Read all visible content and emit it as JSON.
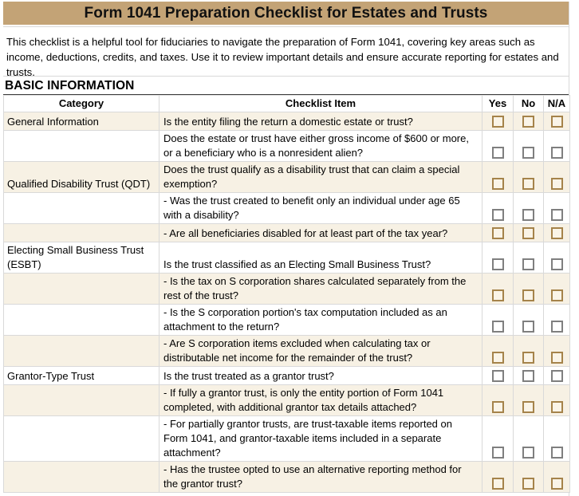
{
  "title": "Form 1041 Preparation Checklist for Estates and Trusts",
  "description": "This checklist is a helpful tool for fiduciaries to navigate the preparation of Form 1041, covering key areas such as income, deductions, credits, and taxes. Use it to review important details and ensure accurate reporting for estates and trusts.",
  "section": "BASIC INFORMATION",
  "columns": [
    "Category",
    "Checklist Item",
    "Yes",
    "No",
    "N/A"
  ],
  "colors": {
    "title_bar": "#c3a376",
    "row_cream": "#f7f1e4",
    "checkbox_brown_border": "#a5834a",
    "checkbox_gray_border": "#7f7f7f",
    "gridline": "#d9d9d9",
    "section_underline": "#3f3f3f"
  },
  "checkboxes": {
    "state": "all-unchecked"
  },
  "rows": [
    {
      "category": "General Information",
      "item": "Is the entity filing the return a domestic estate or trust?",
      "shade": "cream",
      "lines": "single"
    },
    {
      "category": "",
      "item": "Does the estate or trust have either gross income of $600 or more, or a beneficiary who is a nonresident alien?",
      "shade": "white",
      "lines": "double"
    },
    {
      "category": "Qualified Disability Trust (QDT)",
      "item": "Does the trust qualify as a disability trust that can claim a special exemption?",
      "shade": "cream",
      "lines": "double"
    },
    {
      "category": "",
      "item": "- Was the trust created to benefit only an individual under age 65 with a disability?",
      "shade": "white",
      "lines": "double"
    },
    {
      "category": "",
      "item": "- Are all beneficiaries disabled for at least part of the tax year?",
      "shade": "cream",
      "lines": "single"
    },
    {
      "category": "Electing Small Business Trust (ESBT)",
      "item": "Is the trust classified as an Electing Small Business Trust?",
      "shade": "white",
      "lines": "double"
    },
    {
      "category": "",
      "item": "- Is the tax on S corporation shares calculated separately from the rest of the trust?",
      "shade": "cream",
      "lines": "double"
    },
    {
      "category": "",
      "item": "- Is the S corporation portion's tax computation included as an attachment to the return?",
      "shade": "white",
      "lines": "double"
    },
    {
      "category": "",
      "item": "- Are S corporation items excluded when calculating tax or distributable net income for the remainder of the trust?",
      "shade": "cream",
      "lines": "double"
    },
    {
      "category": "Grantor-Type Trust",
      "item": "Is the trust treated as a grantor trust?",
      "shade": "white",
      "lines": "single"
    },
    {
      "category": "",
      "item": "- If fully a grantor trust, is only the entity portion of Form 1041 completed, with additional grantor tax details attached?",
      "shade": "cream",
      "lines": "double"
    },
    {
      "category": "",
      "item": "- For partially grantor trusts, are trust-taxable items reported on Form 1041, and grantor-taxable items included in a separate attachment?",
      "shade": "white",
      "lines": "triple"
    },
    {
      "category": "",
      "item": "- Has the trustee opted to use an alternative reporting method for the grantor trust?",
      "shade": "cream",
      "lines": "double"
    }
  ]
}
